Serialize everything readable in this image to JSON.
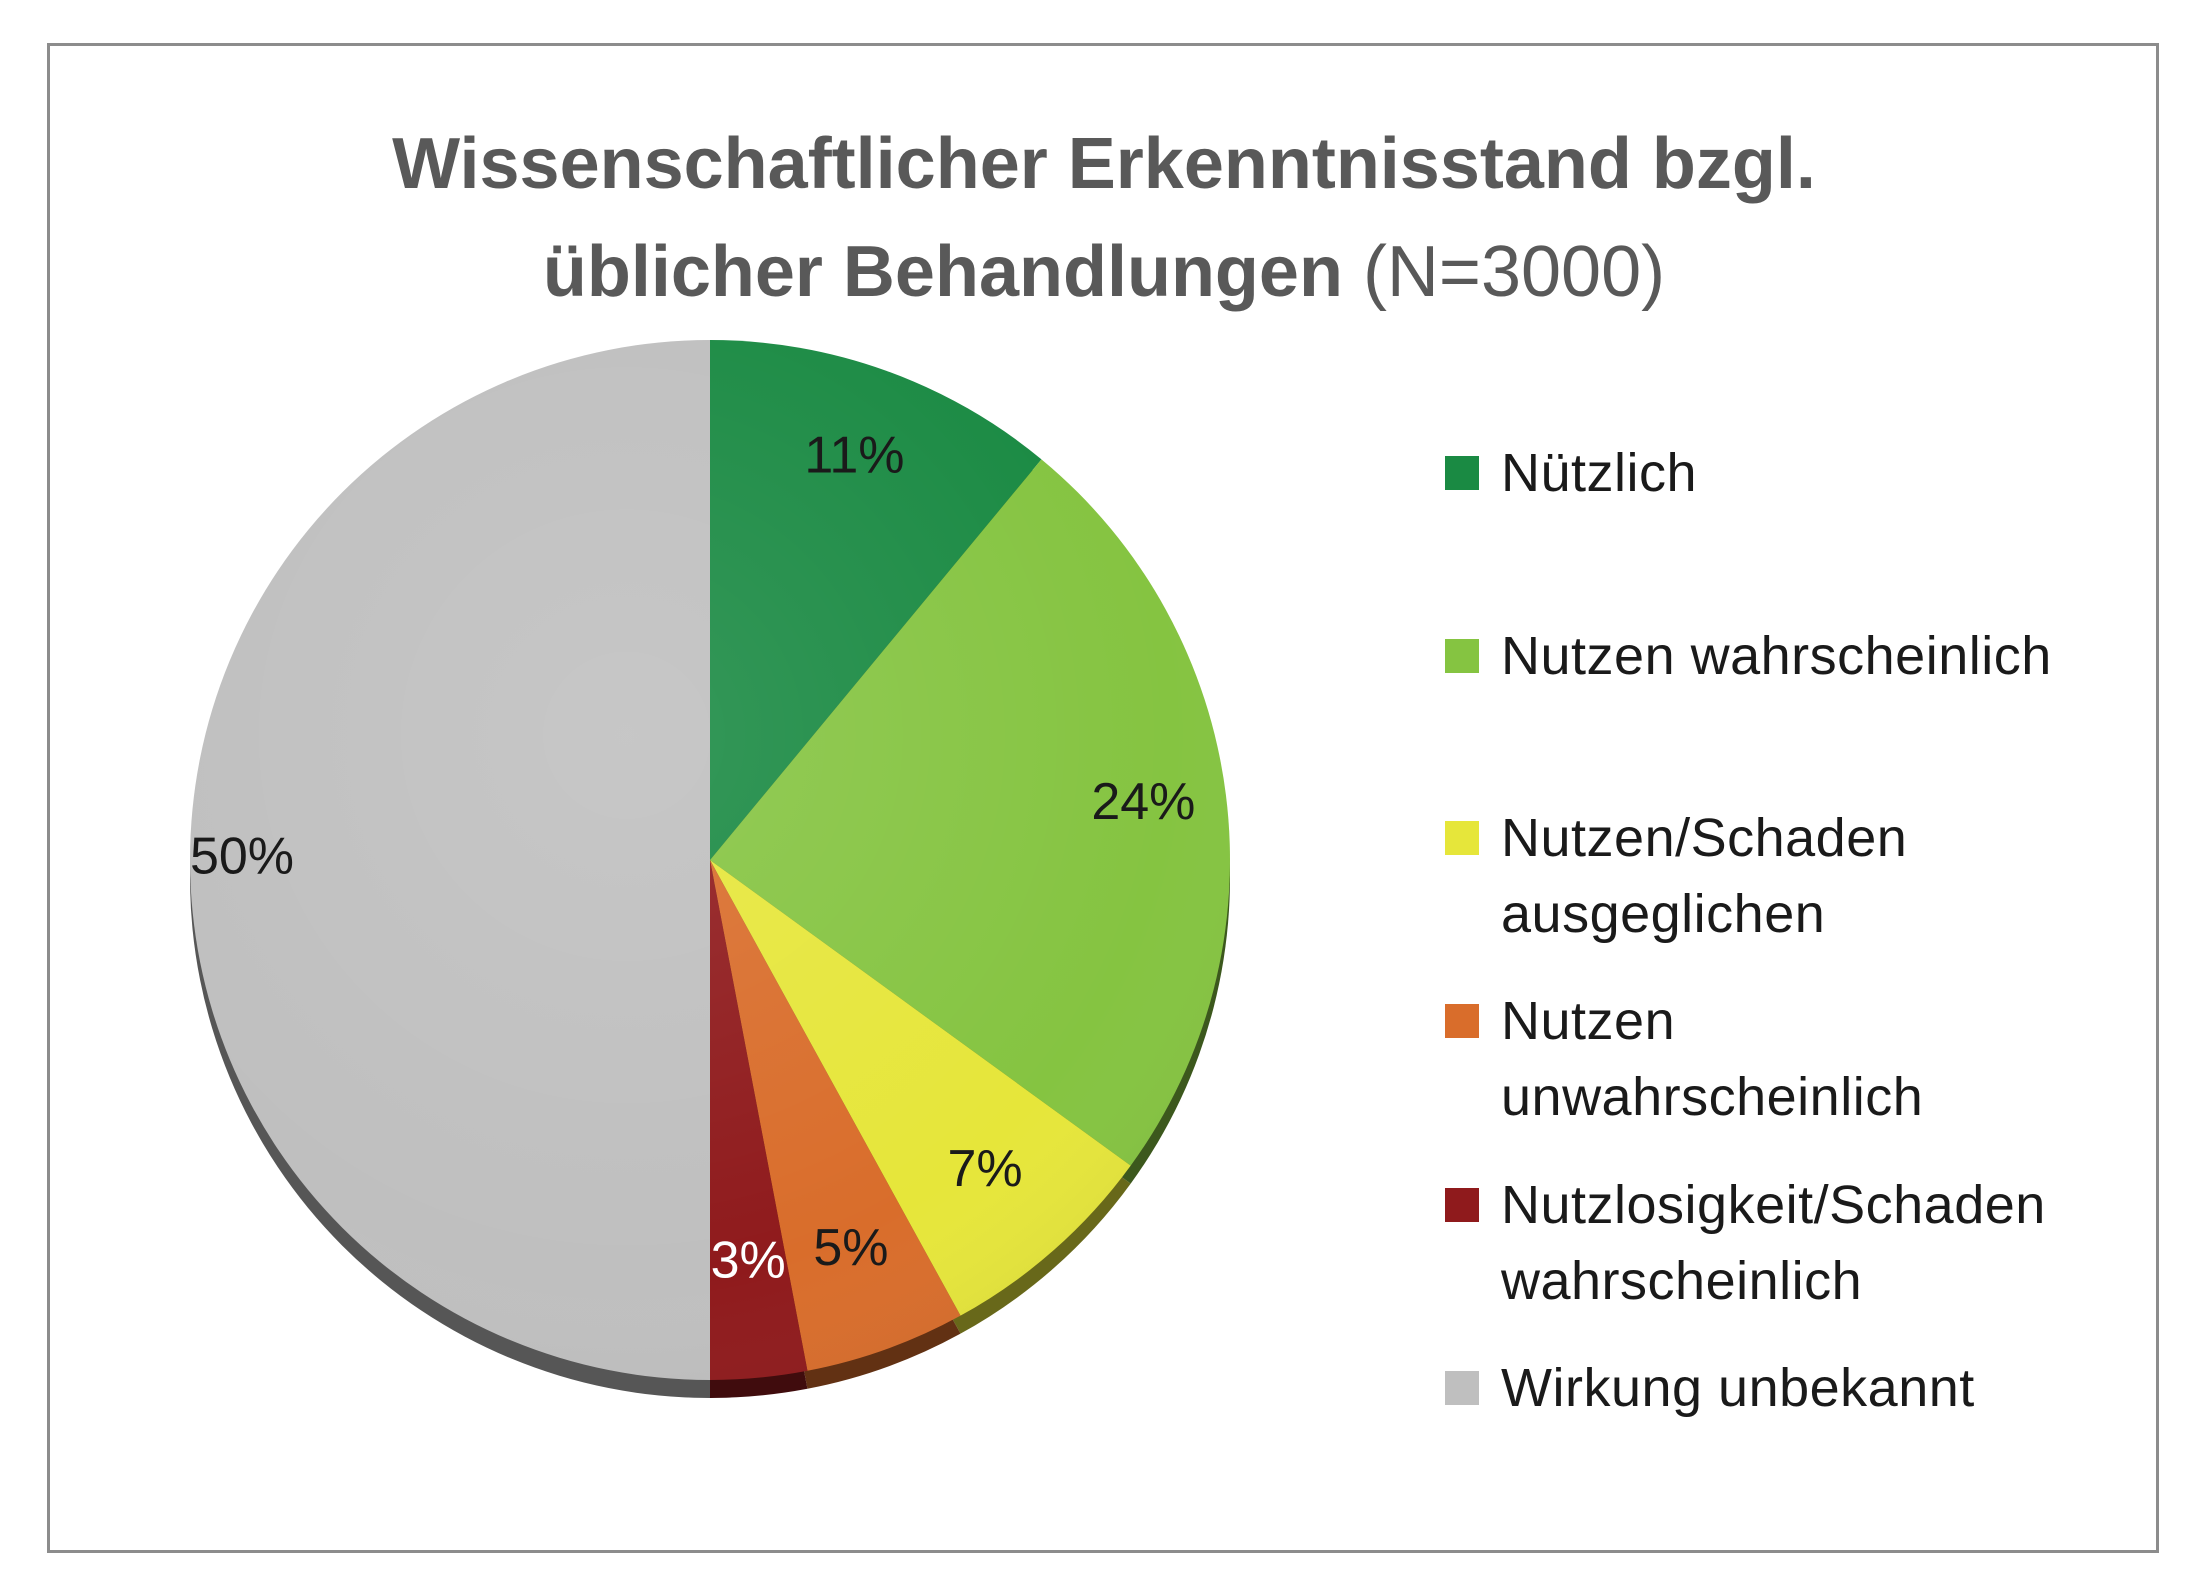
{
  "title": {
    "line1": "Wissenschaftlicher Erkenntnisstand bzgl.",
    "line2_bold": "üblicher Behandlungen",
    "line2_normal": "(N=3000)"
  },
  "chart_data": {
    "type": "pie",
    "title": "Wissenschaftlicher Erkenntnisstand bzgl. üblicher Behandlungen (N=3000)",
    "slices": [
      {
        "label": "Nützlich",
        "value": 11,
        "data_label": "11%",
        "color": "#1a8a43",
        "label_color": "#1a1a1a"
      },
      {
        "label": "Nutzen wahrscheinlich",
        "value": 24,
        "data_label": "24%",
        "color": "#85c441",
        "label_color": "#1a1a1a"
      },
      {
        "label": "Nutzen/Schaden ausgeglichen",
        "value": 7,
        "data_label": "7%",
        "color": "#e6e63a",
        "label_color": "#1a1a1a"
      },
      {
        "label": "Nutzen unwahrscheinlich",
        "value": 5,
        "data_label": "5%",
        "color": "#d96d2b",
        "label_color": "#1a1a1a"
      },
      {
        "label": "Nutzlosigkeit/Schaden wahrscheinlich",
        "value": 3,
        "data_label": "3%",
        "color": "#8f1a1c",
        "label_color": "#ffffff"
      },
      {
        "label": "Wirkung unbekannt",
        "value": 50,
        "data_label": "50%",
        "color": "#bfbfbf",
        "label_color": "#1a1a1a"
      }
    ],
    "legend_position": "right"
  },
  "legend": [
    {
      "lines": [
        "Nützlich"
      ],
      "color": "#1a8a43"
    },
    {
      "lines": [
        "Nutzen wahrscheinlich"
      ],
      "color": "#85c441"
    },
    {
      "lines": [
        "Nutzen/Schaden",
        "ausgeglichen"
      ],
      "color": "#e6e63a"
    },
    {
      "lines": [
        "Nutzen",
        "unwahrscheinlich"
      ],
      "color": "#d96d2b"
    },
    {
      "lines": [
        "Nutzlosigkeit/Schaden",
        "wahrscheinlich"
      ],
      "color": "#8f1a1c"
    },
    {
      "lines": [
        "Wirkung unbekannt"
      ],
      "color": "#bfbfbf"
    }
  ]
}
